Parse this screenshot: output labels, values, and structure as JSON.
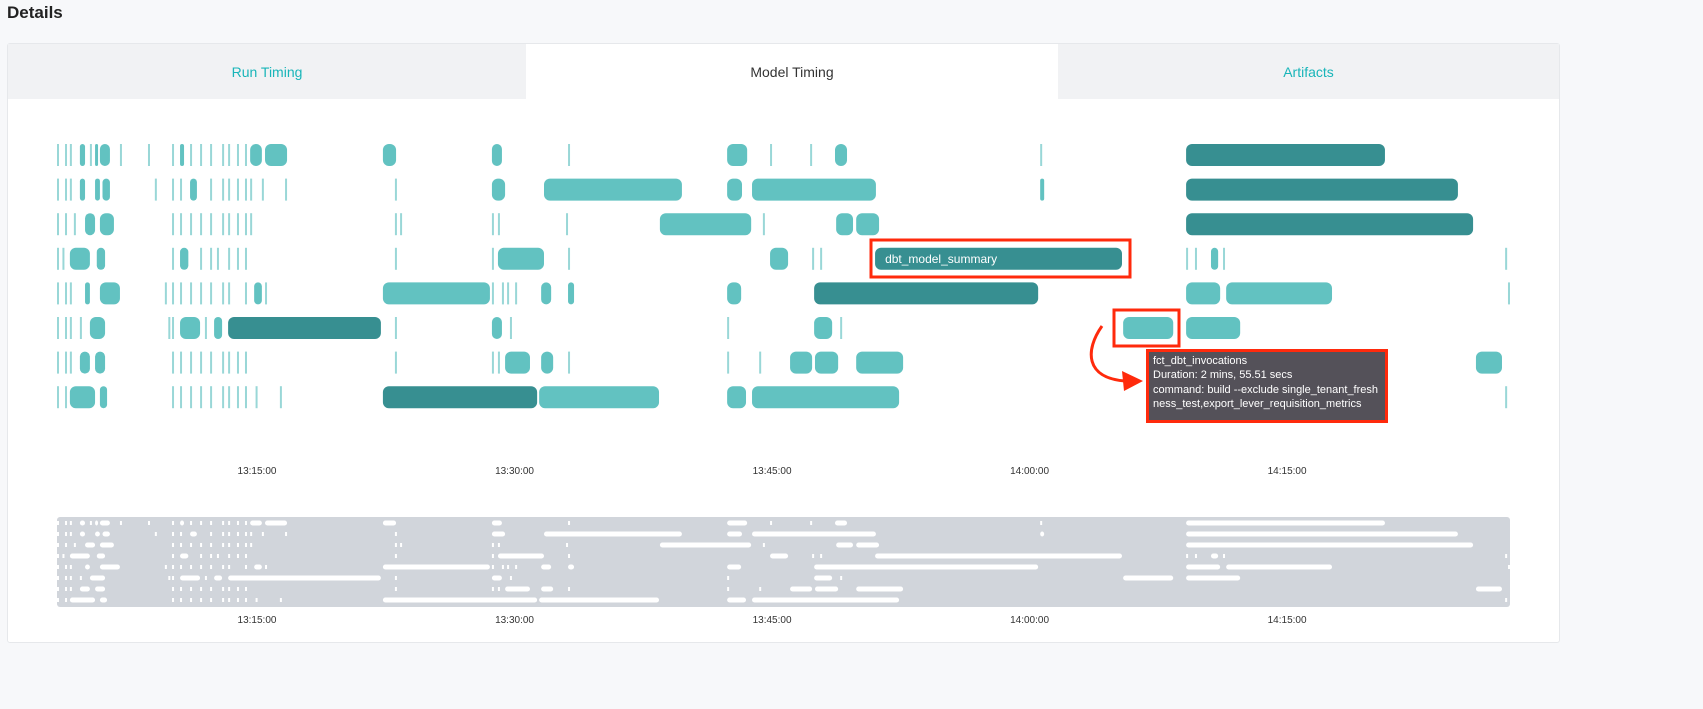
{
  "header": {
    "title": "Details"
  },
  "tabs": [
    {
      "label": "Run Timing",
      "active": false
    },
    {
      "label": "Model Timing",
      "active": true
    },
    {
      "label": "Artifacts",
      "active": false
    }
  ],
  "tooltip": {
    "lines": [
      "fct_dbt_invocations",
      "Duration: 2 mins, 55.51 secs",
      "command: build --exclude single_tenant_freshness_test,export_lever_requisition_metrics"
    ]
  },
  "chart_data": {
    "type": "timeline",
    "x_range": [
      "13:03:21",
      "14:27:59"
    ],
    "x_ticks": [
      "13:15:00",
      "13:30:00",
      "13:45:00",
      "14:00:00",
      "14:15:00"
    ],
    "colors": {
      "light": "#62c2c1",
      "dark": "#378f91",
      "brush_bg": "#d1d5db",
      "brush_bar": "#ffffff",
      "highlight": "#ff2a0c",
      "tooltip_bg": "#545159"
    },
    "rows": [
      {
        "bars": [
          [
            "13:04:41",
            "13:04:59",
            "light"
          ],
          [
            "13:05:34",
            "13:05:40",
            "light"
          ],
          [
            "13:05:51",
            "13:06:26",
            "light"
          ],
          [
            "13:10:31",
            "13:10:45",
            "light"
          ],
          [
            "13:14:36",
            "13:15:17",
            "light"
          ],
          [
            "13:15:28",
            "13:16:45",
            "light"
          ],
          [
            "13:22:20",
            "13:23:06",
            "light"
          ],
          [
            "13:28:41",
            "13:29:16",
            "light"
          ],
          [
            "13:42:23",
            "13:43:33",
            "light"
          ],
          [
            "13:48:40",
            "13:49:22",
            "light"
          ],
          [
            "14:09:07",
            "14:20:42",
            "dark"
          ]
        ],
        "ticks": [
          "13:03:21",
          "13:03:49",
          "13:04:06",
          "13:05:16",
          "13:07:01",
          "13:08:39",
          "13:10:03",
          "13:11:06",
          "13:11:41",
          "13:12:16",
          "13:12:58",
          "13:13:19",
          "13:13:50",
          "13:14:18",
          "13:33:07",
          "13:44:53",
          "13:47:13",
          "14:00:37"
        ]
      },
      {
        "bars": [
          [
            "13:04:41",
            "13:04:59",
            "light"
          ],
          [
            "13:05:34",
            "13:05:51",
            "light"
          ],
          [
            "13:06:00",
            "13:06:26",
            "light"
          ],
          [
            "13:11:06",
            "13:11:30",
            "light"
          ],
          [
            "13:28:41",
            "13:29:27",
            "light"
          ],
          [
            "13:31:43",
            "13:39:45",
            "light"
          ],
          [
            "13:42:23",
            "13:43:15",
            "light"
          ],
          [
            "13:43:50",
            "13:51:03",
            "light"
          ],
          [
            "14:00:37",
            "14:00:51",
            "light"
          ],
          [
            "14:09:07",
            "14:24:57",
            "dark"
          ]
        ],
        "ticks": [
          "13:03:21",
          "13:03:49",
          "13:04:06",
          "13:09:03",
          "13:10:03",
          "13:10:31",
          "13:12:16",
          "13:12:58",
          "13:13:19",
          "13:13:50",
          "13:14:18",
          "13:14:36",
          "13:15:17",
          "13:16:38",
          "13:23:02"
        ]
      },
      {
        "bars": [
          [
            "13:04:59",
            "13:05:34",
            "light"
          ],
          [
            "13:05:51",
            "13:06:40",
            "light"
          ],
          [
            "13:38:28",
            "13:43:47",
            "light"
          ],
          [
            "13:48:44",
            "13:49:43",
            "light"
          ],
          [
            "13:49:54",
            "13:51:14",
            "light"
          ],
          [
            "14:09:07",
            "14:25:50",
            "dark"
          ]
        ],
        "ticks": [
          "13:03:21",
          "13:03:49",
          "13:04:20",
          "13:10:03",
          "13:10:31",
          "13:11:06",
          "13:11:41",
          "13:12:16",
          "13:12:58",
          "13:13:19",
          "13:13:50",
          "13:14:18",
          "13:14:36",
          "13:23:02",
          "13:23:20",
          "13:28:41",
          "13:29:02",
          "13:33:00",
          "13:44:28"
        ]
      },
      {
        "bars": [
          [
            "13:04:06",
            "13:05:16",
            "light"
          ],
          [
            "13:05:40",
            "13:06:09",
            "light"
          ],
          [
            "13:10:31",
            "13:11:00",
            "light"
          ],
          [
            "13:29:02",
            "13:31:43",
            "light"
          ],
          [
            "13:44:53",
            "13:45:56",
            "light"
          ],
          [
            "13:51:00",
            "14:05:23",
            "dark",
            "dbt_model_summary"
          ],
          [
            "14:10:34",
            "14:10:59",
            "light"
          ]
        ],
        "ticks": [
          "13:03:21",
          "13:03:40",
          "13:10:03",
          "13:11:41",
          "13:12:16",
          "13:12:40",
          "13:13:19",
          "13:13:50",
          "13:14:18",
          "13:23:02",
          "13:28:41",
          "13:33:07",
          "13:47:20",
          "13:47:48",
          "14:09:07",
          "14:09:38",
          "14:11:16",
          "14:27:42"
        ]
      },
      {
        "bars": [
          [
            "13:04:59",
            "13:05:16",
            "light"
          ],
          [
            "13:05:51",
            "13:07:01",
            "light"
          ],
          [
            "13:14:50",
            "13:15:17",
            "light"
          ],
          [
            "13:22:20",
            "13:28:34",
            "light"
          ],
          [
            "13:31:33",
            "13:32:08",
            "light"
          ],
          [
            "13:33:07",
            "13:33:28",
            "light"
          ],
          [
            "13:42:23",
            "13:43:12",
            "light"
          ],
          [
            "13:47:27",
            "14:00:30",
            "dark"
          ],
          [
            "14:09:07",
            "14:11:06",
            "light"
          ],
          [
            "14:11:27",
            "14:17:37",
            "light"
          ]
        ],
        "ticks": [
          "13:03:21",
          "13:03:49",
          "13:04:06",
          "13:09:38",
          "13:10:03",
          "13:10:31",
          "13:11:06",
          "13:11:41",
          "13:12:16",
          "13:12:58",
          "13:13:19",
          "13:14:18",
          "13:15:28",
          "13:28:41",
          "13:29:16",
          "13:29:34",
          "13:30:02",
          "14:27:52"
        ]
      },
      {
        "bars": [
          [
            "13:05:16",
            "13:06:09",
            "light"
          ],
          [
            "13:10:31",
            "13:11:41",
            "light"
          ],
          [
            "13:12:30",
            "13:12:58",
            "light"
          ],
          [
            "13:13:19",
            "13:22:13",
            "dark"
          ],
          [
            "13:28:41",
            "13:29:16",
            "light"
          ],
          [
            "13:47:27",
            "13:48:30",
            "light"
          ],
          [
            "14:05:27",
            "14:08:22",
            "light"
          ],
          [
            "14:09:07",
            "14:12:16",
            "light"
          ]
        ],
        "ticks": [
          "13:03:21",
          "13:03:49",
          "13:04:06",
          "13:04:41",
          "13:09:50",
          "13:10:03",
          "13:11:58",
          "13:23:02",
          "13:29:44",
          "13:42:23",
          "13:48:58"
        ]
      },
      {
        "bars": [
          [
            "13:04:41",
            "13:05:16",
            "light"
          ],
          [
            "13:05:34",
            "13:06:09",
            "light"
          ],
          [
            "13:29:27",
            "13:30:54",
            "light"
          ],
          [
            "13:31:33",
            "13:32:15",
            "light"
          ],
          [
            "13:46:03",
            "13:47:20",
            "light"
          ],
          [
            "13:47:30",
            "13:48:51",
            "light"
          ],
          [
            "13:49:54",
            "13:52:38",
            "light"
          ],
          [
            "14:26:00",
            "14:27:31",
            "light"
          ]
        ],
        "ticks": [
          "13:03:21",
          "13:03:49",
          "13:04:06",
          "13:10:03",
          "13:10:31",
          "13:11:06",
          "13:11:41",
          "13:12:16",
          "13:12:58",
          "13:13:19",
          "13:13:50",
          "13:14:18",
          "13:23:02",
          "13:28:41",
          "13:29:02",
          "13:33:07",
          "13:42:23",
          "13:44:15"
        ]
      },
      {
        "bars": [
          [
            "13:04:06",
            "13:05:34",
            "light"
          ],
          [
            "13:05:51",
            "13:06:16",
            "light"
          ],
          [
            "13:22:20",
            "13:31:19",
            "dark"
          ],
          [
            "13:31:26",
            "13:38:25",
            "light"
          ],
          [
            "13:42:23",
            "13:43:29",
            "light"
          ],
          [
            "13:43:50",
            "13:52:24",
            "light"
          ]
        ],
        "ticks": [
          "13:03:21",
          "13:03:49",
          "13:10:03",
          "13:10:31",
          "13:11:06",
          "13:11:41",
          "13:12:16",
          "13:12:58",
          "13:13:19",
          "13:13:50",
          "13:14:18",
          "13:14:55",
          "13:16:20",
          "14:27:42"
        ]
      }
    ]
  }
}
